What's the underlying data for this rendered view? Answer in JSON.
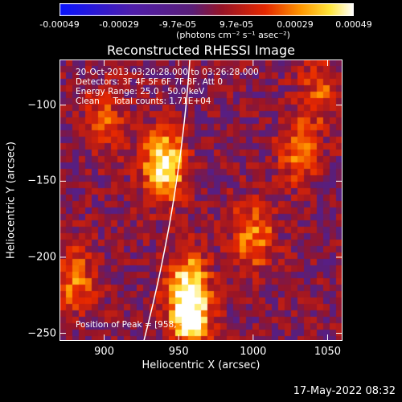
{
  "colorbar": {
    "ticks": [
      "-0.00049",
      "-0.00029",
      "-9.7e-05",
      "9.7e-05",
      "0.00029",
      "0.00049"
    ],
    "unit": "(photons cm⁻² s⁻¹ asec⁻²)",
    "colormap": "blue-purple-red-yellow-white"
  },
  "chart_data": {
    "type": "heatmap",
    "title": "Reconstructed RHESSI Image",
    "xlabel": "Heliocentric X (arcsec)",
    "ylabel": "Heliocentric Y (arcsec)",
    "xlim": [
      870,
      1060
    ],
    "ylim": [
      -255,
      -70
    ],
    "xticks": [
      900,
      950,
      1000,
      1050
    ],
    "yticks": [
      -100,
      -150,
      -200,
      -250
    ],
    "xtick_labels": [
      "900",
      "950",
      "1000",
      "1050"
    ],
    "ytick_labels": [
      "−100",
      "−150",
      "−200",
      "−250"
    ],
    "peaks": [
      {
        "x": 940,
        "y": -140,
        "intensity": 0.00049
      },
      {
        "x": 958,
        "y": -238,
        "intensity": 0.00049
      },
      {
        "x": 955,
        "y": -215,
        "intensity": 0.0003
      },
      {
        "x": 1000,
        "y": -185,
        "intensity": 0.0003
      },
      {
        "x": 1030,
        "y": -130,
        "intensity": 0.00025
      },
      {
        "x": 900,
        "y": -110,
        "intensity": 0.0002
      },
      {
        "x": 1045,
        "y": -90,
        "intensity": 0.0002
      },
      {
        "x": 880,
        "y": -215,
        "intensity": 0.00025
      }
    ],
    "annotations": [
      "20-Oct-2013 03:20:28.000 to 03:26:28.000",
      "Detectors: 3F 4F 5F 6F 7F 8F, Att 0",
      "Energy Range: 25.0 - 50.0 keV",
      "Clean     Total counts: 1.71E+04",
      "Position of Peak = [958, -238]"
    ]
  },
  "footer": {
    "timestamp": "17-May-2022 08:32"
  }
}
